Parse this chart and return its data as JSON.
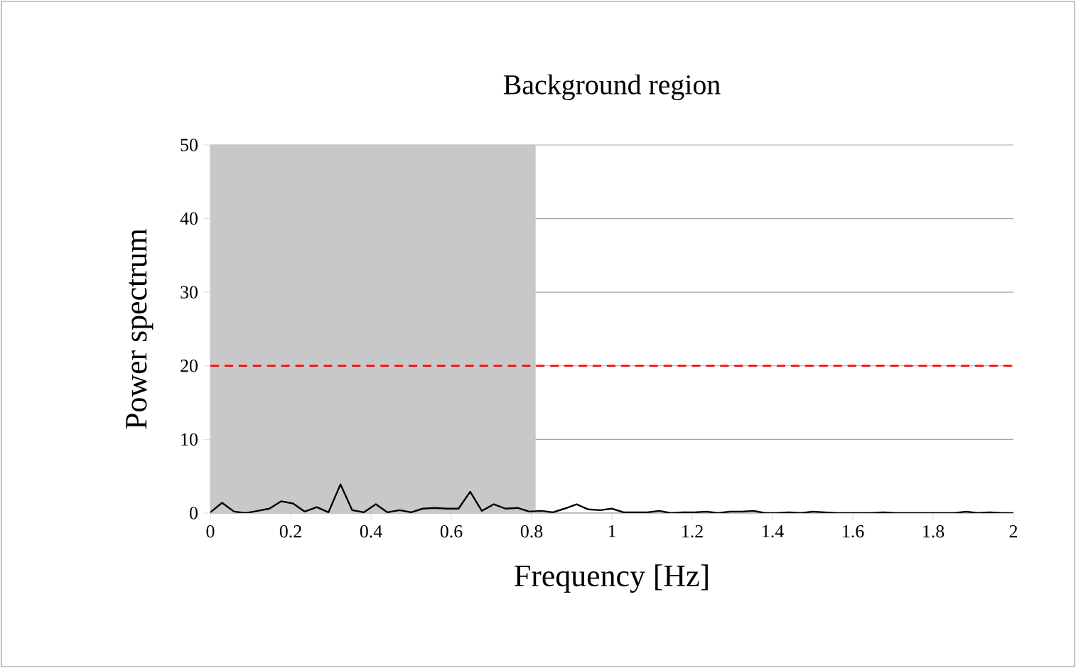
{
  "chart_data": {
    "type": "line",
    "title": "Background region",
    "xlabel": "Frequency [Hz]",
    "ylabel": "Power spectrum",
    "x": [
      0,
      0.029,
      0.059,
      0.088,
      0.118,
      0.147,
      0.176,
      0.206,
      0.235,
      0.265,
      0.294,
      0.324,
      0.353,
      0.382,
      0.412,
      0.441,
      0.471,
      0.5,
      0.529,
      0.559,
      0.588,
      0.618,
      0.647,
      0.676,
      0.706,
      0.735,
      0.765,
      0.794,
      0.824,
      0.853,
      0.882,
      0.912,
      0.941,
      0.971,
      1,
      1.029,
      1.059,
      1.088,
      1.118,
      1.147,
      1.176,
      1.206,
      1.235,
      1.265,
      1.294,
      1.324,
      1.353,
      1.382,
      1.412,
      1.441,
      1.471,
      1.5,
      1.529,
      1.559,
      1.588,
      1.618,
      1.647,
      1.676,
      1.706,
      1.735,
      1.765,
      1.794,
      1.824,
      1.853,
      1.882,
      1.912,
      1.941,
      1.971,
      2
    ],
    "series": [
      {
        "color": "#000000",
        "values": [
          0.1,
          1.4,
          0.2,
          0,
          0.3,
          0.6,
          1.6,
          1.3,
          0.2,
          0.8,
          0.1,
          3.9,
          0.4,
          0.1,
          1.2,
          0.1,
          0.4,
          0.1,
          0.6,
          0.7,
          0.6,
          0.6,
          2.9,
          0.3,
          1.2,
          0.6,
          0.7,
          0.2,
          0.3,
          0.1,
          0.6,
          1.2,
          0.5,
          0.4,
          0.6,
          0.1,
          0.1,
          0.1,
          0.3,
          0,
          0.1,
          0.1,
          0.2,
          0,
          0.2,
          0.2,
          0.3,
          0,
          0,
          0.1,
          0,
          0.2,
          0.1,
          0,
          0,
          0,
          0,
          0.1,
          0,
          0,
          0,
          0,
          0,
          0,
          0.2,
          0,
          0.1,
          0,
          0
        ]
      }
    ],
    "xlim": [
      0,
      2
    ],
    "ylim": [
      0,
      50
    ],
    "xticks": [
      0,
      0.2,
      0.4,
      0.6,
      0.8,
      1,
      1.2,
      1.4,
      1.6,
      1.8,
      2
    ],
    "yticks": [
      0,
      10,
      20,
      30,
      40,
      50
    ],
    "grid": "y",
    "marker": "none",
    "line_style": "solid",
    "bands": [
      {
        "axis": "x",
        "from": 0,
        "to": 0.81,
        "color": "#c8c8c8"
      }
    ],
    "ref_lines": [
      {
        "axis": "y",
        "value": 20,
        "color": "#ff0000",
        "line_style": "dashed"
      }
    ]
  }
}
